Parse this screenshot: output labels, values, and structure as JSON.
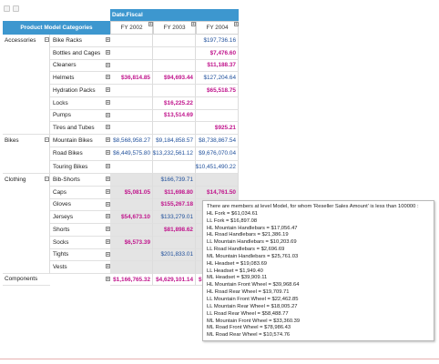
{
  "pivot": {
    "row_header": "Product Model Categories",
    "column_header": "Date.Fiscal",
    "columns": [
      "FY 2002",
      "FY 2003",
      "FY 2004"
    ],
    "categories": {
      "accessories": "Accessories",
      "bikes": "Bikes",
      "clothing": "Clothing",
      "components": "Components"
    },
    "rows": {
      "bike_racks": {
        "label": "Bike Racks",
        "fy2002": "",
        "fy2003": "",
        "fy2004": "$197,736.16"
      },
      "bottles_and_cages": {
        "label": "Bottles and Cages",
        "fy2002": "",
        "fy2003": "",
        "fy2004": "$7,476.60"
      },
      "cleaners": {
        "label": "Cleaners",
        "fy2002": "",
        "fy2003": "",
        "fy2004": "$11,188.37"
      },
      "helmets": {
        "label": "Helmets",
        "fy2002": "$36,814.85",
        "fy2003": "$94,693.44",
        "fy2004": "$127,204.64"
      },
      "hydration_packs": {
        "label": "Hydration Packs",
        "fy2002": "",
        "fy2003": "",
        "fy2004": "$65,518.75"
      },
      "locks": {
        "label": "Locks",
        "fy2002": "",
        "fy2003": "$16,225.22",
        "fy2004": ""
      },
      "pumps": {
        "label": "Pumps",
        "fy2002": "",
        "fy2003": "$13,514.69",
        "fy2004": ""
      },
      "tires_and_tubes": {
        "label": "Tires and Tubes",
        "fy2002": "",
        "fy2003": "",
        "fy2004": "$925.21"
      },
      "mountain_bikes": {
        "label": "Mountain Bikes",
        "fy2002": "$8,568,958.27",
        "fy2003": "$9,184,858.57",
        "fy2004": "$8,738,867.54"
      },
      "road_bikes": {
        "label": "Road Bikes",
        "fy2002": "$6,449,575.80",
        "fy2003": "$13,232,561.12",
        "fy2004": "$9,676,070.04"
      },
      "touring_bikes": {
        "label": "Touring Bikes",
        "fy2002": "",
        "fy2003": "",
        "fy2004": "$10,451,490.22"
      },
      "bib_shorts": {
        "label": "Bib-Shorts",
        "fy2002": "",
        "fy2003": "$166,739.71",
        "fy2004": ""
      },
      "caps": {
        "label": "Caps",
        "fy2002": "$5,081.05",
        "fy2003": "$11,698.80",
        "fy2004": "$14,761.50"
      },
      "gloves": {
        "label": "Gloves",
        "fy2002": "",
        "fy2003": "$155,267.18",
        "fy2004": ""
      },
      "jerseys": {
        "label": "Jerseys",
        "fy2002": "$54,673.10",
        "fy2003": "$133,279.01",
        "fy2004": ""
      },
      "shorts": {
        "label": "Shorts",
        "fy2002": "",
        "fy2003": "$81,898.62",
        "fy2004": ""
      },
      "socks": {
        "label": "Socks",
        "fy2002": "$6,573.39",
        "fy2003": "",
        "fy2004": ""
      },
      "tights": {
        "label": "Tights",
        "fy2002": "",
        "fy2003": "$201,833.01",
        "fy2004": ""
      },
      "vests": {
        "label": "Vests",
        "fy2002": "",
        "fy2003": "",
        "fy2004": ""
      },
      "components": {
        "label": "",
        "fy2002": "$1,166,765.32",
        "fy2003": "$4,629,101.14",
        "fy2004": "$"
      }
    }
  },
  "tooltip": {
    "heading": "There are members at level Model, for whom 'Reseller Sales Amount' is less than 100000 :",
    "items": [
      "HL Fork = $61,034.61",
      "LL Fork = $16,897.08",
      "HL Mountain Handlebars = $17,056.47",
      "HL Road Handlebars = $21,386.19",
      "LL Mountain Handlebars = $10,203.69",
      "LL Road Handlebars = $2,696.69",
      "ML Mountain Handlebars = $25,761.03",
      "HL Headset = $19,083.69",
      "LL Headset = $1,949.40",
      "ML Headset = $39,909.11",
      "HL Mountain Front Wheel = $39,968.64",
      "HL Road Rear Wheel = $19,709.71",
      "LL Mountain Front Wheel = $22,462.85",
      "LL Mountain Rear Wheel = $18,005.27",
      "LL Road Rear Wheel = $58,488.77",
      "ML Mountain Front Wheel = $33,360.39",
      "ML Road Front Wheel = $78,986.43",
      "ML Road Rear Wheel = $10,574.76"
    ]
  },
  "colors": {
    "header_blue": "#3d97cf",
    "highlight": "#c0148c",
    "value_blue": "#1f4f9b",
    "shaded": "#e4e4e4"
  },
  "icons": [
    "export-icon",
    "refresh-icon",
    "expand-icon",
    "collapse-icon"
  ]
}
